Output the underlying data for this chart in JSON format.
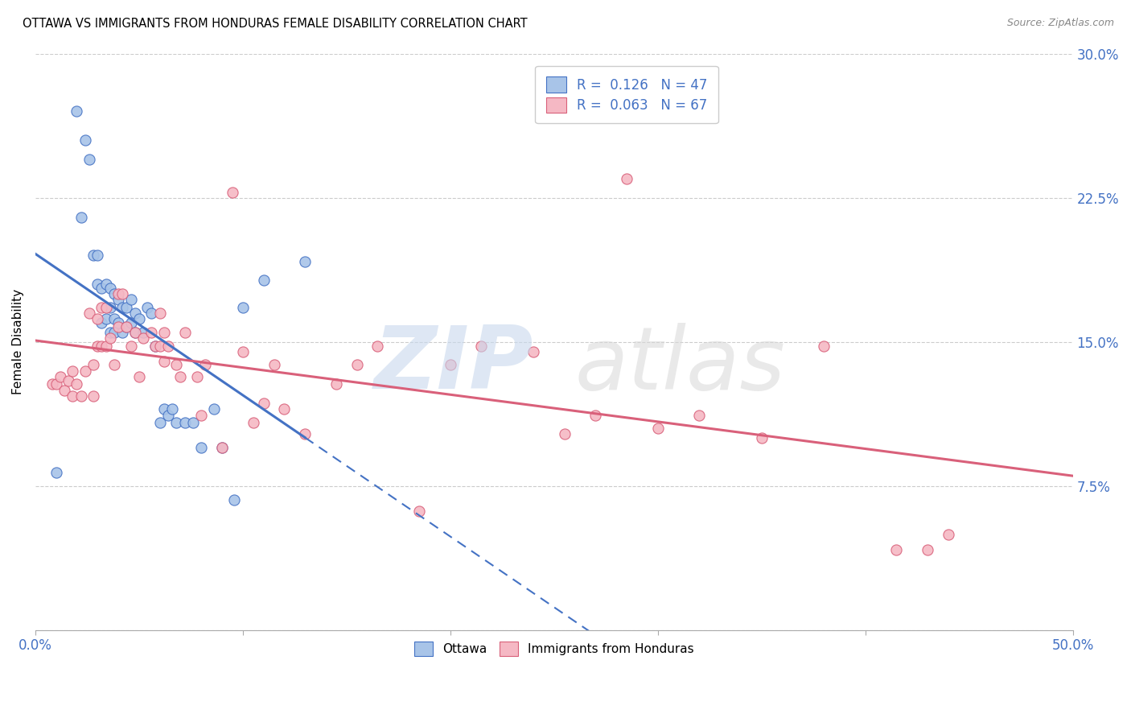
{
  "title": "OTTAWA VS IMMIGRANTS FROM HONDURAS FEMALE DISABILITY CORRELATION CHART",
  "source": "Source: ZipAtlas.com",
  "ylabel": "Female Disability",
  "xlim": [
    0.0,
    0.5
  ],
  "ylim": [
    0.0,
    0.3
  ],
  "xtick_positions": [
    0.0,
    0.1,
    0.2,
    0.3,
    0.4,
    0.5
  ],
  "xtick_labels": [
    "0.0%",
    "",
    "",
    "",
    "",
    "50.0%"
  ],
  "ytick_positions": [
    0.0,
    0.075,
    0.15,
    0.225,
    0.3
  ],
  "ytick_labels": [
    "",
    "7.5%",
    "15.0%",
    "22.5%",
    "30.0%"
  ],
  "ottawa_R": 0.126,
  "ottawa_N": 47,
  "honduras_R": 0.063,
  "honduras_N": 67,
  "ottawa_color": "#a8c4e8",
  "honduras_color": "#f5b8c4",
  "trendline_ottawa_color": "#4472c4",
  "trendline_honduras_color": "#d9607a",
  "background_color": "#ffffff",
  "legend_label_color": "#4472c4",
  "ottawa_x": [
    0.01,
    0.02,
    0.022,
    0.024,
    0.026,
    0.028,
    0.03,
    0.03,
    0.032,
    0.032,
    0.034,
    0.034,
    0.036,
    0.036,
    0.036,
    0.038,
    0.038,
    0.038,
    0.04,
    0.04,
    0.042,
    0.042,
    0.044,
    0.044,
    0.046,
    0.046,
    0.048,
    0.048,
    0.05,
    0.052,
    0.054,
    0.056,
    0.058,
    0.06,
    0.062,
    0.064,
    0.066,
    0.068,
    0.072,
    0.076,
    0.08,
    0.086,
    0.09,
    0.096,
    0.1,
    0.11,
    0.13
  ],
  "ottawa_y": [
    0.082,
    0.27,
    0.215,
    0.255,
    0.245,
    0.195,
    0.195,
    0.18,
    0.16,
    0.178,
    0.18,
    0.162,
    0.178,
    0.168,
    0.155,
    0.175,
    0.162,
    0.155,
    0.172,
    0.16,
    0.168,
    0.155,
    0.168,
    0.158,
    0.172,
    0.16,
    0.165,
    0.155,
    0.162,
    0.155,
    0.168,
    0.165,
    0.148,
    0.108,
    0.115,
    0.112,
    0.115,
    0.108,
    0.108,
    0.108,
    0.095,
    0.115,
    0.095,
    0.068,
    0.168,
    0.182,
    0.192
  ],
  "honduras_x": [
    0.008,
    0.01,
    0.012,
    0.014,
    0.016,
    0.018,
    0.018,
    0.02,
    0.022,
    0.024,
    0.026,
    0.028,
    0.028,
    0.03,
    0.03,
    0.032,
    0.032,
    0.034,
    0.034,
    0.036,
    0.038,
    0.04,
    0.04,
    0.042,
    0.044,
    0.046,
    0.048,
    0.05,
    0.052,
    0.056,
    0.058,
    0.06,
    0.06,
    0.062,
    0.062,
    0.064,
    0.068,
    0.07,
    0.072,
    0.078,
    0.08,
    0.082,
    0.09,
    0.095,
    0.1,
    0.105,
    0.11,
    0.115,
    0.12,
    0.13,
    0.145,
    0.155,
    0.165,
    0.185,
    0.2,
    0.215,
    0.24,
    0.255,
    0.27,
    0.285,
    0.3,
    0.32,
    0.35,
    0.38,
    0.415,
    0.43,
    0.44
  ],
  "honduras_y": [
    0.128,
    0.128,
    0.132,
    0.125,
    0.13,
    0.135,
    0.122,
    0.128,
    0.122,
    0.135,
    0.165,
    0.138,
    0.122,
    0.162,
    0.148,
    0.168,
    0.148,
    0.168,
    0.148,
    0.152,
    0.138,
    0.175,
    0.158,
    0.175,
    0.158,
    0.148,
    0.155,
    0.132,
    0.152,
    0.155,
    0.148,
    0.165,
    0.148,
    0.155,
    0.14,
    0.148,
    0.138,
    0.132,
    0.155,
    0.132,
    0.112,
    0.138,
    0.095,
    0.228,
    0.145,
    0.108,
    0.118,
    0.138,
    0.115,
    0.102,
    0.128,
    0.138,
    0.148,
    0.062,
    0.138,
    0.148,
    0.145,
    0.102,
    0.112,
    0.235,
    0.105,
    0.112,
    0.1,
    0.148,
    0.042,
    0.042,
    0.05
  ]
}
